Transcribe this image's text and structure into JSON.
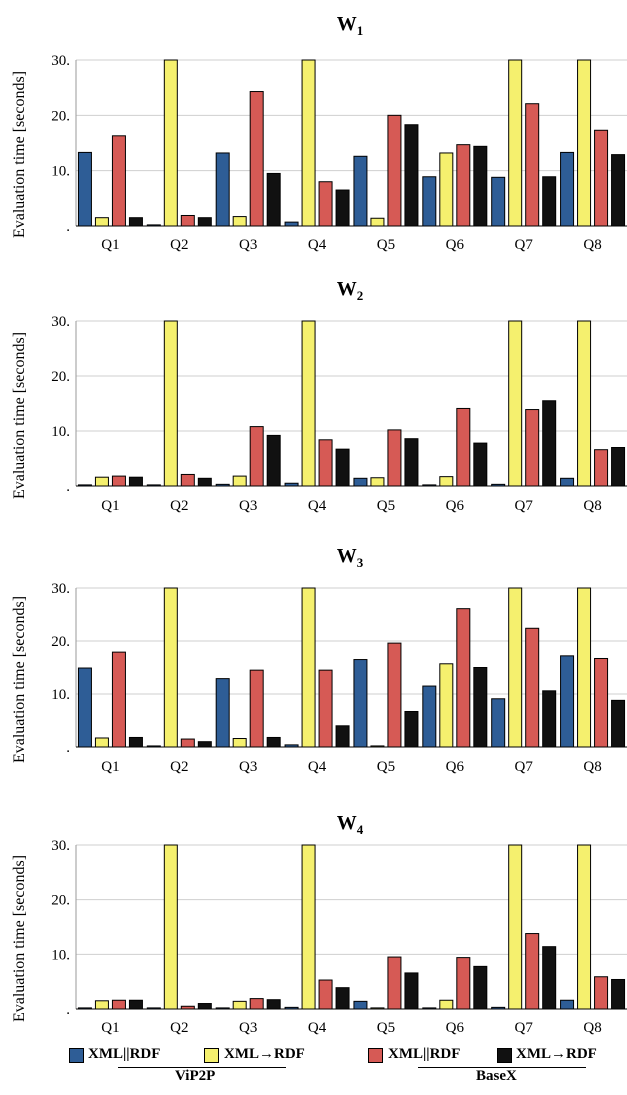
{
  "colors": {
    "vip2p_xml_rdf_joint": "#2e5d96",
    "vip2p_xml_to_rdf": "#f5f06e",
    "basex_xml_rdf_joint": "#d65a55",
    "basex_xml_to_rdf": "#111111"
  },
  "chart_data": [
    {
      "type": "bar",
      "title": "W",
      "title_sub": "1",
      "ylabel": "Evaluation time [seconds]",
      "ylim": [
        0,
        30
      ],
      "yticks": [
        "30.",
        "20.",
        "10.",
        "."
      ],
      "ytick_values": [
        30,
        20,
        10,
        0
      ],
      "categories": [
        "Q1",
        "Q2",
        "Q3",
        "Q4",
        "Q5",
        "Q6",
        "Q7",
        "Q8"
      ],
      "series": [
        {
          "values": [
            13.3,
            0.2,
            13.2,
            0.7,
            12.6,
            8.9,
            8.8,
            13.3
          ]
        },
        {
          "values": [
            1.5,
            30,
            1.7,
            30,
            1.4,
            13.2,
            30,
            30
          ]
        },
        {
          "values": [
            16.3,
            1.9,
            24.3,
            8.0,
            20.0,
            14.7,
            22.1,
            17.3
          ]
        },
        {
          "values": [
            1.5,
            1.5,
            9.5,
            6.5,
            18.3,
            14.4,
            8.9,
            12.9
          ]
        }
      ]
    },
    {
      "type": "bar",
      "title": "W",
      "title_sub": "2",
      "ylabel": "Evaluation time [seconds]",
      "ylim": [
        0,
        30
      ],
      "yticks": [
        "30.",
        "20.",
        "10.",
        "."
      ],
      "ytick_values": [
        30,
        20,
        10,
        0
      ],
      "categories": [
        "Q1",
        "Q2",
        "Q3",
        "Q4",
        "Q5",
        "Q6",
        "Q7",
        "Q8"
      ],
      "series": [
        {
          "values": [
            0.2,
            0.2,
            0.3,
            0.5,
            1.4,
            0.2,
            0.3,
            1.4
          ]
        },
        {
          "values": [
            1.6,
            30,
            1.8,
            30,
            1.5,
            1.7,
            30,
            30
          ]
        },
        {
          "values": [
            1.8,
            2.1,
            10.8,
            8.4,
            10.2,
            14.1,
            13.9,
            6.6
          ]
        },
        {
          "values": [
            1.6,
            1.4,
            9.2,
            6.7,
            8.6,
            7.8,
            15.5,
            7.0
          ]
        }
      ]
    },
    {
      "type": "bar",
      "title": "W",
      "title_sub": "3",
      "ylabel": "Evaluation time [seconds]",
      "ylim": [
        0,
        30
      ],
      "yticks": [
        "30.",
        "20.",
        "10.",
        "."
      ],
      "ytick_values": [
        30,
        20,
        10,
        0
      ],
      "categories": [
        "Q1",
        "Q2",
        "Q3",
        "Q4",
        "Q5",
        "Q6",
        "Q7",
        "Q8"
      ],
      "series": [
        {
          "values": [
            14.9,
            0.2,
            12.9,
            0.4,
            16.5,
            11.5,
            9.1,
            17.2
          ]
        },
        {
          "values": [
            1.7,
            30,
            1.6,
            30,
            0.2,
            15.7,
            30,
            30
          ]
        },
        {
          "values": [
            17.9,
            1.5,
            14.5,
            14.5,
            19.6,
            26.1,
            22.4,
            16.7
          ]
        },
        {
          "values": [
            1.8,
            1.0,
            1.8,
            4.0,
            6.7,
            15.0,
            10.6,
            8.8
          ]
        }
      ]
    },
    {
      "type": "bar",
      "title": "W",
      "title_sub": "4",
      "ylabel": "Evaluation time [seconds]",
      "ylim": [
        0,
        30
      ],
      "yticks": [
        "30.",
        "20.",
        "10.",
        "."
      ],
      "ytick_values": [
        30,
        20,
        10,
        0
      ],
      "categories": [
        "Q1",
        "Q2",
        "Q3",
        "Q4",
        "Q5",
        "Q6",
        "Q7",
        "Q8"
      ],
      "series": [
        {
          "values": [
            0.2,
            0.2,
            0.2,
            0.3,
            1.4,
            0.2,
            0.3,
            1.6
          ]
        },
        {
          "values": [
            1.5,
            30,
            1.4,
            30,
            0.2,
            1.6,
            30,
            30
          ]
        },
        {
          "values": [
            1.6,
            0.5,
            1.9,
            5.3,
            9.5,
            9.4,
            13.8,
            5.9
          ]
        },
        {
          "values": [
            1.6,
            1.0,
            1.7,
            3.9,
            6.6,
            7.8,
            11.4,
            5.4
          ]
        }
      ]
    }
  ],
  "legend": {
    "items": [
      {
        "label": "XML||RDF"
      },
      {
        "label": "XML→RDF"
      },
      {
        "label": "XML||RDF"
      },
      {
        "label": "XML→RDF"
      }
    ],
    "groups": [
      "ViP2P",
      "BaseX"
    ]
  }
}
